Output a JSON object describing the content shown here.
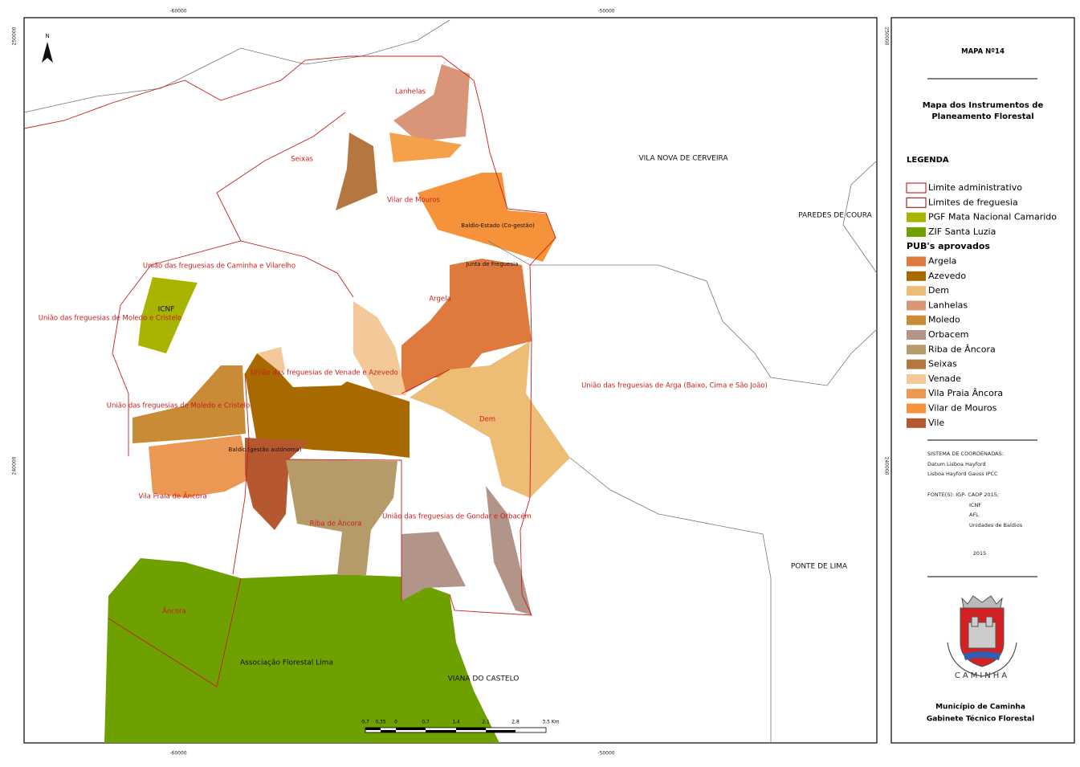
{
  "map": {
    "coords": {
      "x": [
        "-60000",
        "-50000"
      ],
      "y": [
        "250000",
        "240000"
      ]
    },
    "north": "N",
    "labels": [
      "Lanhelas",
      "Seixas",
      "Vilar de Mouros",
      "Baldio-Estado (Co-gestão)",
      "Junta de Freguesia",
      "União das freguesias de Caminha e Vilarelho",
      "ICNF",
      "União das freguesias de Moledo e Cristelo",
      "Argela",
      "União das freguesias de Venade e Azevedo",
      "União das freguesias de Moledo e Cristelo",
      "União das freguesias de Arga (Baixo, Cima e São João)",
      "Dem",
      "Baldio (gestão autónoma)",
      "Vila Praia de Âncora",
      "Riba de Âncora",
      "União das freguesias de Gondar e Orbacém",
      "Âncora",
      "Associação Florestal Lima",
      "VILA NOVA DE CERVEIRA",
      "PAREDES DE COURA",
      "PONTE DE LIMA",
      "VIANA DO CASTELO"
    ],
    "scale_labels": [
      "0,7",
      "0,35",
      "0",
      "0,7",
      "1,4",
      "2,1",
      "2,8",
      "3,5 Km"
    ]
  },
  "panel": {
    "map_number": "MAPA Nº14",
    "title": [
      "Mapa dos Instrumentos de",
      "Planeamento Florestal"
    ],
    "legend_heading": "LEGENDA",
    "items": [
      {
        "label": "Limite administrativo",
        "color": "#ffffff",
        "border": "#c00000"
      },
      {
        "label": "Limites de freguesia",
        "color": "#ffffff",
        "border": "#8b0000"
      },
      {
        "label": "PGF Mata Nacional Camarido",
        "color": "#a8b400"
      },
      {
        "label": "ZIF Santa Luzia",
        "color": "#6ea000"
      }
    ],
    "pub_heading": "PUB's aprovados",
    "pub_items": [
      {
        "label": "Argela",
        "color": "#df7a3f"
      },
      {
        "label": "Azevedo",
        "color": "#a86a00"
      },
      {
        "label": "Dem",
        "color": "#edbd75"
      },
      {
        "label": "Lanhelas",
        "color": "#d99577"
      },
      {
        "label": "Moledo",
        "color": "#c98b36"
      },
      {
        "label": "Orbacem",
        "color": "#b39488"
      },
      {
        "label": "Riba de Âncora",
        "color": "#b59a6a"
      },
      {
        "label": "Seixas",
        "color": "#b5773f"
      },
      {
        "label": "Venade",
        "color": "#f3c99a"
      },
      {
        "label": "Vila Praia Âncora",
        "color": "#ec9855"
      },
      {
        "label": "Vilar de Mouros",
        "color": "#f5923a"
      },
      {
        "label": "Vile",
        "color": "#b5582f"
      }
    ],
    "info": [
      "SISTEMA DE COORDENADAS:",
      "Datum Lisboa Hayford",
      "Lisboa Hayford Gauss IPCC",
      "FONTE(S): IGP- CAOP 2015;",
      "ICNF",
      "AFL",
      "Unidades de Baldios",
      "2015"
    ],
    "crest_text": "CAMINHA",
    "footer": [
      "Município de Caminha",
      "Gabinete Técnico Florestal"
    ]
  }
}
